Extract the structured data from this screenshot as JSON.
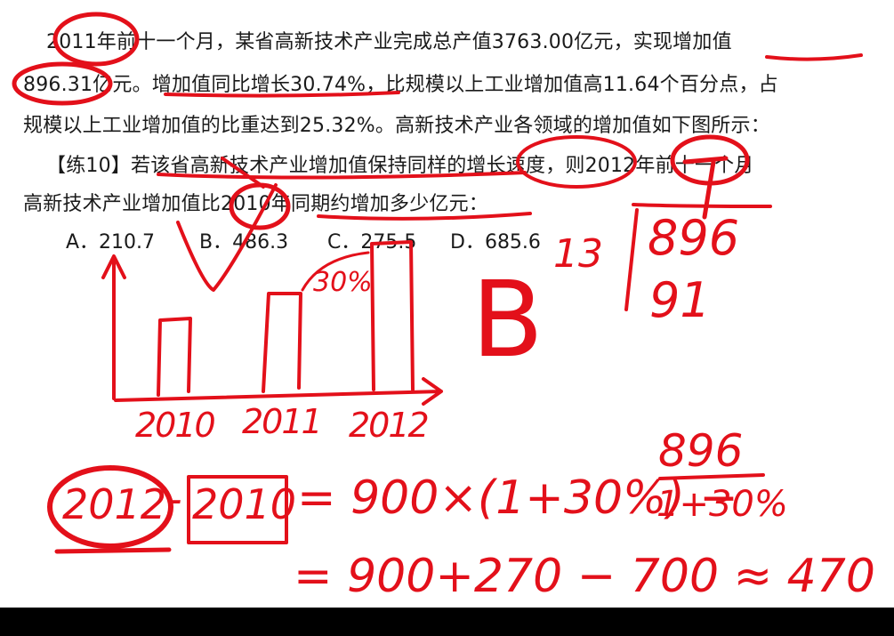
{
  "text": {
    "line1": "2011年前十一个月，某省高新技术产业完成总产值3763.00亿元，实现增加值",
    "line2": "896.31亿元。增加值同比增长30.74%，比规模以上工业增加值高11.64个百分点，占",
    "line3": "规模以上工业增加值的比重达到25.32%。高新技术产业各领域的增加值如下图所示：",
    "line4": "【练10】若该省高新技术产业增加值保持同样的增长速度，则2012年前十一个月",
    "line5": "高新技术产业增加值比2010年同期约增加多少亿元："
  },
  "options": [
    {
      "label": "A．210.7"
    },
    {
      "label": "B．486.3"
    },
    {
      "label": "C．275.5"
    },
    {
      "label": "D．685.6"
    }
  ],
  "annotations": {
    "chart_pct": "30%",
    "chart_years": [
      "2010",
      "2011",
      "2012"
    ],
    "answer": "B",
    "division_divisor": "13",
    "division_dividend": "896",
    "division_quotient": "91",
    "eq_left_a": "2012",
    "eq_minus": "-",
    "eq_left_b": "2010",
    "eq_rhs": "= 900×(1+30%) −",
    "frac_num": "896",
    "frac_den": "1+30%",
    "eq_line2": "= 900+270 − 700 ≈ 470"
  },
  "colors": {
    "ink": "#e3101a",
    "text": "#1a1a1a",
    "bar": "#000000"
  }
}
